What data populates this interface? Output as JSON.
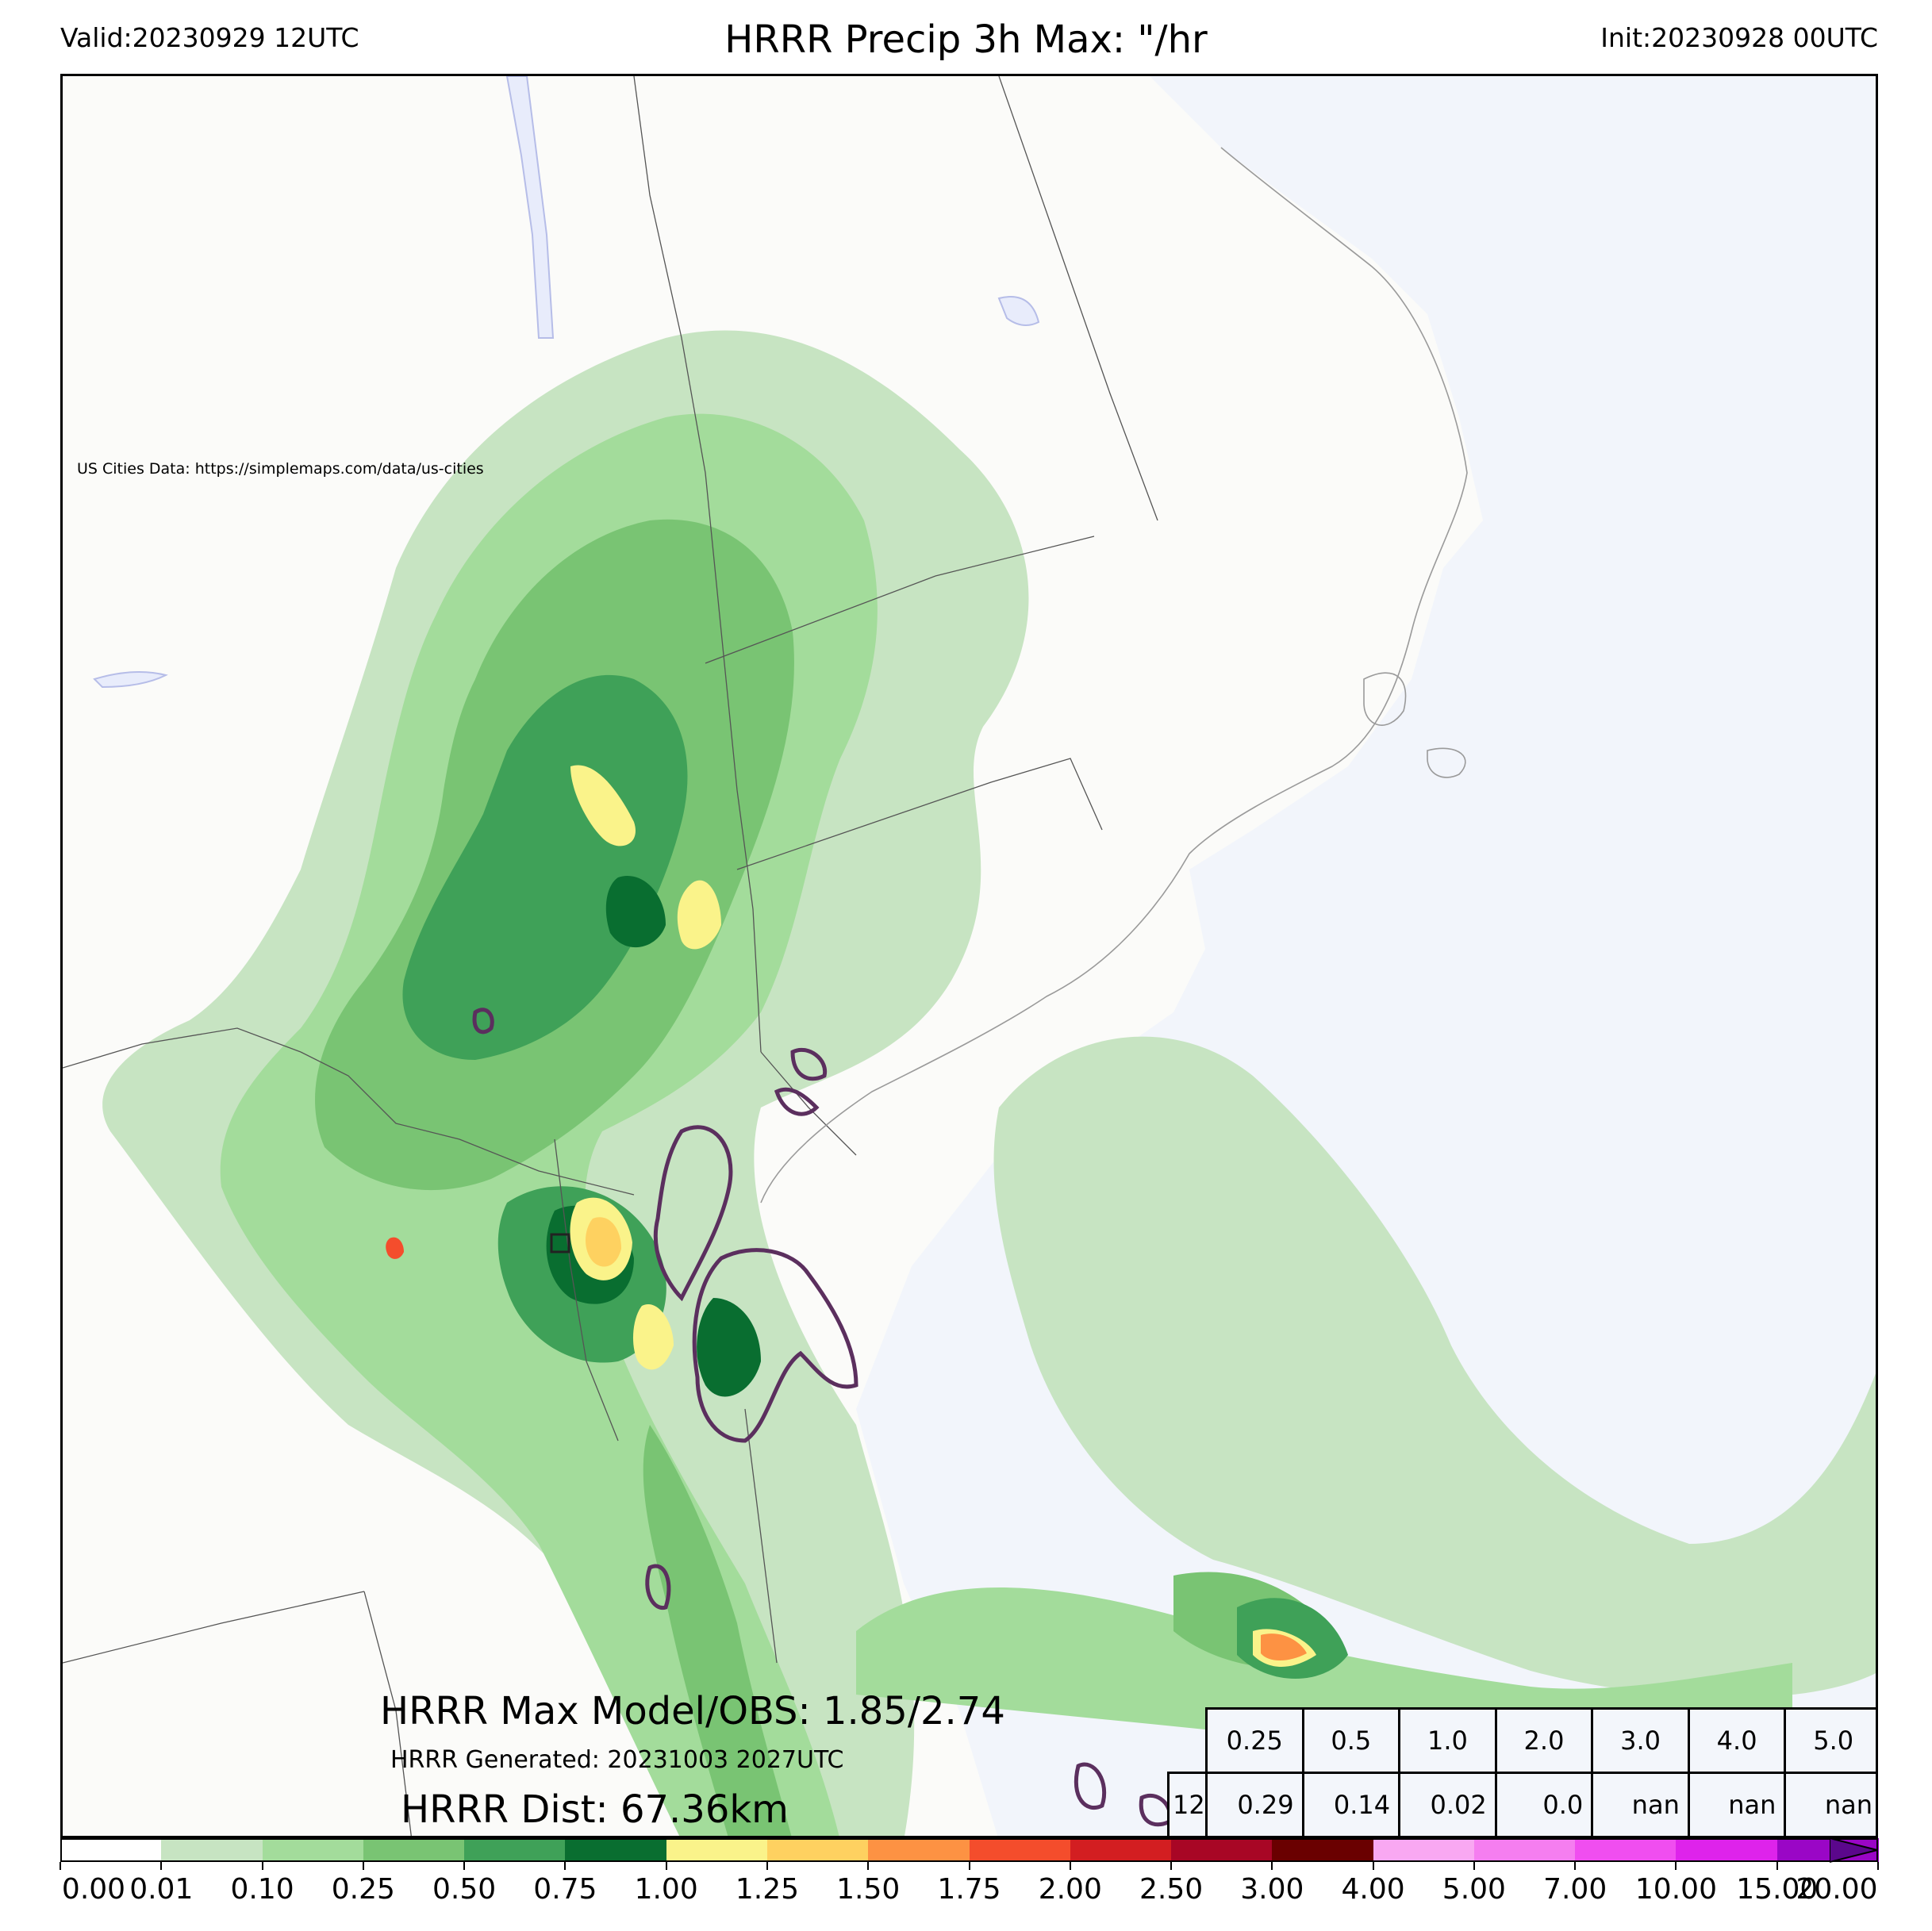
{
  "header": {
    "valid": "Valid:20230929 12UTC",
    "title": "HRRR Precip 3h Max: \"/hr",
    "init": "Init:20230928 00UTC"
  },
  "map": {
    "credit": "US Cities Data: https://simplemaps.com/data/us-cities",
    "colors": {
      "land": "#fbfbf9",
      "water": "#f2f5fb",
      "lakes": "#e8ecfb",
      "obs_contour": "#5b2f5e"
    }
  },
  "annotations": {
    "max_model_obs": "HRRR Max Model/OBS: 1.85/2.74",
    "generated": "HRRR Generated: 20231003 2027UTC",
    "distance": "HRRR Dist: 67.36km"
  },
  "stats_table": {
    "row1": [
      "0.25",
      "0.5",
      "1.0",
      "2.0",
      "3.0",
      "4.0",
      "5.0"
    ],
    "row2_prefix": "12",
    "row2": [
      "0.29",
      "0.14",
      "0.02",
      "0.0",
      "nan",
      "nan",
      "nan"
    ]
  },
  "colorbar": {
    "ticks": [
      "0.00",
      "0.01",
      "0.10",
      "0.25",
      "0.50",
      "0.75",
      "1.00",
      "1.25",
      "1.50",
      "1.75",
      "2.00",
      "2.50",
      "3.00",
      "4.00",
      "5.00",
      "7.00",
      "10.00",
      "15.00",
      "20.00"
    ],
    "colors": [
      "#ffffff",
      "#c7e4c2",
      "#a3dc9b",
      "#79c473",
      "#3fa158",
      "#096e30",
      "#faf38a",
      "#fed160",
      "#fd9243",
      "#f44d2c",
      "#d31e21",
      "#a80625",
      "#6a0000",
      "#f9a8f2",
      "#f57ef0",
      "#f04ef0",
      "#de23eb",
      "#9a06c6"
    ],
    "extend_color": "#5b078c"
  }
}
